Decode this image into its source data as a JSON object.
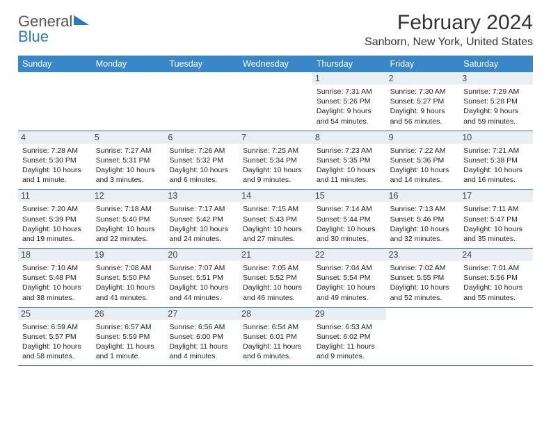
{
  "logo": {
    "line1": "General",
    "line2": "Blue"
  },
  "header": {
    "month_title": "February 2024",
    "location": "Sanborn, New York, United States"
  },
  "day_headers": [
    "Sunday",
    "Monday",
    "Tuesday",
    "Wednesday",
    "Thursday",
    "Friday",
    "Saturday"
  ],
  "colors": {
    "header_bg": "#3a87c8",
    "header_text": "#ffffff",
    "rule": "#3a6a99",
    "daynum_bg": "#e9eef3",
    "logo_blue": "#2f77bb"
  },
  "typography": {
    "body_pt": 10.5,
    "header_pt": 12.5,
    "title_pt": 30,
    "location_pt": 16
  },
  "weeks": [
    [
      {
        "num": "",
        "empty": true
      },
      {
        "num": "",
        "empty": true
      },
      {
        "num": "",
        "empty": true
      },
      {
        "num": "",
        "empty": true
      },
      {
        "num": "1",
        "sunrise": "Sunrise: 7:31 AM",
        "sunset": "Sunset: 5:26 PM",
        "daylight": "Daylight: 9 hours and 54 minutes."
      },
      {
        "num": "2",
        "sunrise": "Sunrise: 7:30 AM",
        "sunset": "Sunset: 5:27 PM",
        "daylight": "Daylight: 9 hours and 56 minutes."
      },
      {
        "num": "3",
        "sunrise": "Sunrise: 7:29 AM",
        "sunset": "Sunset: 5:28 PM",
        "daylight": "Daylight: 9 hours and 59 minutes."
      }
    ],
    [
      {
        "num": "4",
        "sunrise": "Sunrise: 7:28 AM",
        "sunset": "Sunset: 5:30 PM",
        "daylight": "Daylight: 10 hours and 1 minute."
      },
      {
        "num": "5",
        "sunrise": "Sunrise: 7:27 AM",
        "sunset": "Sunset: 5:31 PM",
        "daylight": "Daylight: 10 hours and 3 minutes."
      },
      {
        "num": "6",
        "sunrise": "Sunrise: 7:26 AM",
        "sunset": "Sunset: 5:32 PM",
        "daylight": "Daylight: 10 hours and 6 minutes."
      },
      {
        "num": "7",
        "sunrise": "Sunrise: 7:25 AM",
        "sunset": "Sunset: 5:34 PM",
        "daylight": "Daylight: 10 hours and 9 minutes."
      },
      {
        "num": "8",
        "sunrise": "Sunrise: 7:23 AM",
        "sunset": "Sunset: 5:35 PM",
        "daylight": "Daylight: 10 hours and 11 minutes."
      },
      {
        "num": "9",
        "sunrise": "Sunrise: 7:22 AM",
        "sunset": "Sunset: 5:36 PM",
        "daylight": "Daylight: 10 hours and 14 minutes."
      },
      {
        "num": "10",
        "sunrise": "Sunrise: 7:21 AM",
        "sunset": "Sunset: 5:38 PM",
        "daylight": "Daylight: 10 hours and 16 minutes."
      }
    ],
    [
      {
        "num": "11",
        "sunrise": "Sunrise: 7:20 AM",
        "sunset": "Sunset: 5:39 PM",
        "daylight": "Daylight: 10 hours and 19 minutes."
      },
      {
        "num": "12",
        "sunrise": "Sunrise: 7:18 AM",
        "sunset": "Sunset: 5:40 PM",
        "daylight": "Daylight: 10 hours and 22 minutes."
      },
      {
        "num": "13",
        "sunrise": "Sunrise: 7:17 AM",
        "sunset": "Sunset: 5:42 PM",
        "daylight": "Daylight: 10 hours and 24 minutes."
      },
      {
        "num": "14",
        "sunrise": "Sunrise: 7:15 AM",
        "sunset": "Sunset: 5:43 PM",
        "daylight": "Daylight: 10 hours and 27 minutes."
      },
      {
        "num": "15",
        "sunrise": "Sunrise: 7:14 AM",
        "sunset": "Sunset: 5:44 PM",
        "daylight": "Daylight: 10 hours and 30 minutes."
      },
      {
        "num": "16",
        "sunrise": "Sunrise: 7:13 AM",
        "sunset": "Sunset: 5:46 PM",
        "daylight": "Daylight: 10 hours and 32 minutes."
      },
      {
        "num": "17",
        "sunrise": "Sunrise: 7:11 AM",
        "sunset": "Sunset: 5:47 PM",
        "daylight": "Daylight: 10 hours and 35 minutes."
      }
    ],
    [
      {
        "num": "18",
        "sunrise": "Sunrise: 7:10 AM",
        "sunset": "Sunset: 5:48 PM",
        "daylight": "Daylight: 10 hours and 38 minutes."
      },
      {
        "num": "19",
        "sunrise": "Sunrise: 7:08 AM",
        "sunset": "Sunset: 5:50 PM",
        "daylight": "Daylight: 10 hours and 41 minutes."
      },
      {
        "num": "20",
        "sunrise": "Sunrise: 7:07 AM",
        "sunset": "Sunset: 5:51 PM",
        "daylight": "Daylight: 10 hours and 44 minutes."
      },
      {
        "num": "21",
        "sunrise": "Sunrise: 7:05 AM",
        "sunset": "Sunset: 5:52 PM",
        "daylight": "Daylight: 10 hours and 46 minutes."
      },
      {
        "num": "22",
        "sunrise": "Sunrise: 7:04 AM",
        "sunset": "Sunset: 5:54 PM",
        "daylight": "Daylight: 10 hours and 49 minutes."
      },
      {
        "num": "23",
        "sunrise": "Sunrise: 7:02 AM",
        "sunset": "Sunset: 5:55 PM",
        "daylight": "Daylight: 10 hours and 52 minutes."
      },
      {
        "num": "24",
        "sunrise": "Sunrise: 7:01 AM",
        "sunset": "Sunset: 5:56 PM",
        "daylight": "Daylight: 10 hours and 55 minutes."
      }
    ],
    [
      {
        "num": "25",
        "sunrise": "Sunrise: 6:59 AM",
        "sunset": "Sunset: 5:57 PM",
        "daylight": "Daylight: 10 hours and 58 minutes."
      },
      {
        "num": "26",
        "sunrise": "Sunrise: 6:57 AM",
        "sunset": "Sunset: 5:59 PM",
        "daylight": "Daylight: 11 hours and 1 minute."
      },
      {
        "num": "27",
        "sunrise": "Sunrise: 6:56 AM",
        "sunset": "Sunset: 6:00 PM",
        "daylight": "Daylight: 11 hours and 4 minutes."
      },
      {
        "num": "28",
        "sunrise": "Sunrise: 6:54 AM",
        "sunset": "Sunset: 6:01 PM",
        "daylight": "Daylight: 11 hours and 6 minutes."
      },
      {
        "num": "29",
        "sunrise": "Sunrise: 6:53 AM",
        "sunset": "Sunset: 6:02 PM",
        "daylight": "Daylight: 11 hours and 9 minutes."
      },
      {
        "num": "",
        "empty": true
      },
      {
        "num": "",
        "empty": true
      }
    ]
  ]
}
